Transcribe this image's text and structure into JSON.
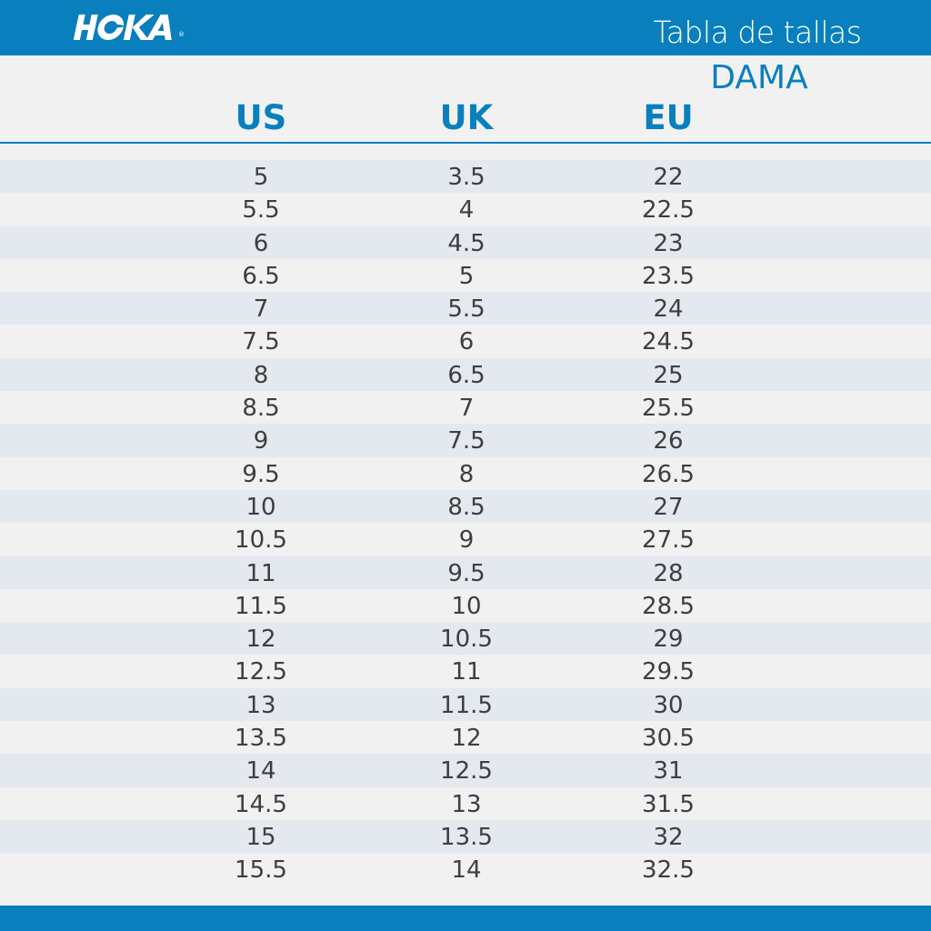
{
  "brand": {
    "logo_text": "HOKA",
    "registered_mark": "®"
  },
  "chart_data": {
    "type": "table",
    "title": "Tabla de tallas",
    "subtitle": "DAMA",
    "columns": [
      "US",
      "UK",
      "EU"
    ],
    "rows": [
      [
        "5",
        "3.5",
        "22"
      ],
      [
        "5.5",
        "4",
        "22.5"
      ],
      [
        "6",
        "4.5",
        "23"
      ],
      [
        "6.5",
        "5",
        "23.5"
      ],
      [
        "7",
        "5.5",
        "24"
      ],
      [
        "7.5",
        "6",
        "24.5"
      ],
      [
        "8",
        "6.5",
        "25"
      ],
      [
        "8.5",
        "7",
        "25.5"
      ],
      [
        "9",
        "7.5",
        "26"
      ],
      [
        "9.5",
        "8",
        "26.5"
      ],
      [
        "10",
        "8.5",
        "27"
      ],
      [
        "10.5",
        "9",
        "27.5"
      ],
      [
        "11",
        "9.5",
        "28"
      ],
      [
        "11.5",
        "10",
        "28.5"
      ],
      [
        "12",
        "10.5",
        "29"
      ],
      [
        "12.5",
        "11",
        "29.5"
      ],
      [
        "13",
        "11.5",
        "30"
      ],
      [
        "13.5",
        "12",
        "30.5"
      ],
      [
        "14",
        "12.5",
        "31"
      ],
      [
        "14.5",
        "13",
        "31.5"
      ],
      [
        "15",
        "13.5",
        "32"
      ],
      [
        "15.5",
        "14",
        "32.5"
      ]
    ]
  },
  "colors": {
    "brand_blue": "#0a7fbd",
    "stripe": "#e3e9ee",
    "background": "#f1f1f2",
    "text": "#3e3e40"
  }
}
